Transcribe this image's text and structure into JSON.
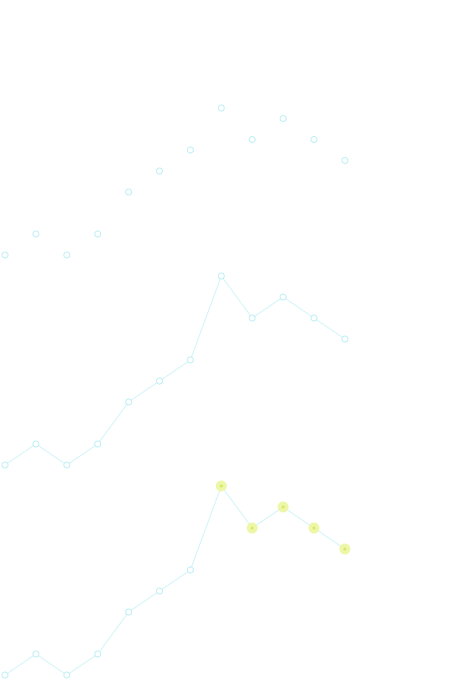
{
  "chart_data": {
    "type": "line",
    "title": "",
    "xlabel": "",
    "ylabel": "",
    "grid": false,
    "legend": "none",
    "x": [
      0,
      1,
      2,
      3,
      4,
      5,
      6,
      7,
      8,
      9,
      10,
      11
    ],
    "series": [
      {
        "name": "",
        "color": "#bdeff4",
        "line_visible": false,
        "highlight_last": false,
        "values": [
          20,
          21,
          20,
          21,
          23,
          24,
          25,
          27,
          25.5,
          26.5,
          25.5,
          24.5
        ]
      },
      {
        "name": "",
        "color": "#bdeff4",
        "line_visible": true,
        "highlight_last": false,
        "values": [
          10,
          11,
          10,
          11,
          13,
          14,
          15,
          19,
          17,
          18,
          17,
          16
        ]
      },
      {
        "name": "",
        "color": "#bdeff4",
        "highlight_color": "#eef7a8",
        "line_visible": true,
        "highlight_last": true,
        "highlight_from": 7,
        "values": [
          0,
          1,
          0,
          1,
          3,
          4,
          5,
          9,
          7,
          8,
          7,
          6
        ]
      }
    ]
  }
}
